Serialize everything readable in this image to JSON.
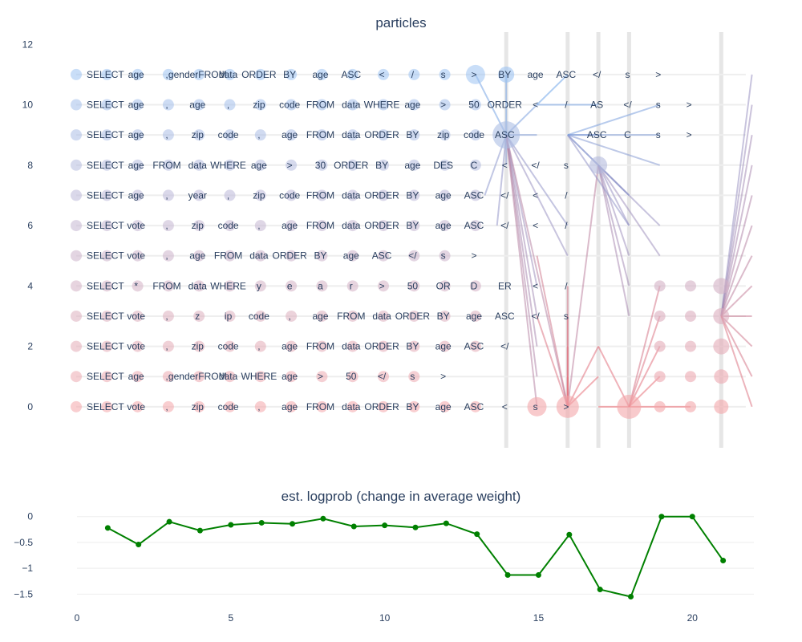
{
  "chart_data": [
    {
      "type": "scatter",
      "title": "particles",
      "xlabel": "",
      "ylabel": "",
      "xlim": [
        -0.5,
        22.5
      ],
      "ylim": [
        -1.2,
        12.3
      ],
      "y_ticks": [
        0,
        2,
        4,
        6,
        8,
        10,
        12
      ],
      "resample_steps": [
        14,
        16,
        17,
        18,
        21
      ],
      "colors": {
        "low": "#f4a6aa",
        "high": "#9cc3f2",
        "line_low": "#ee6e74",
        "line_high": "#6aa9ef"
      },
      "rows": [
        {
          "y": 0,
          "tokens": [
            "SELECT",
            "vote",
            ",",
            "zip",
            "code",
            ",",
            "age",
            "FROM",
            "data",
            "ORDER",
            "BY",
            "age",
            "ASC",
            "<",
            "s",
            ">",
            "",
            "",
            "",
            "",
            ""
          ]
        },
        {
          "y": 1,
          "tokens": [
            "SELECT",
            "age",
            ",",
            "genderFROM",
            "data",
            "WHERE",
            "age",
            ">",
            "50",
            "</",
            "s",
            ">",
            "",
            "",
            "",
            "",
            "",
            "",
            "",
            "",
            ""
          ]
        },
        {
          "y": 2,
          "tokens": [
            "SELECT",
            "vote",
            ",",
            "zip",
            "code",
            ",",
            "age",
            "FROM",
            "data",
            "ORDER",
            "BY",
            "age",
            "ASC",
            "</",
            "",
            "",
            "",
            "",
            "",
            "",
            ""
          ]
        },
        {
          "y": 3,
          "tokens": [
            "SELECT",
            "vote",
            ",",
            "z",
            "ip",
            "code",
            ",",
            "age",
            "FROM",
            "data",
            "ORDER",
            "BY",
            "age",
            "ASC",
            "</",
            "s",
            "",
            "",
            "",
            "",
            ""
          ]
        },
        {
          "y": 4,
          "tokens": [
            "SELECT",
            "*",
            "FROM",
            "data",
            "WHERE",
            "y",
            "e",
            "a",
            "r",
            ">",
            "50",
            "OR",
            "D",
            "ER",
            "<",
            "/",
            "",
            "",
            "",
            "",
            ""
          ]
        },
        {
          "y": 5,
          "tokens": [
            "SELECT",
            "vote",
            ",",
            "age",
            "FROM",
            "data",
            "ORDER",
            "BY",
            "age",
            "ASC",
            "</",
            "s",
            ">",
            "",
            "",
            "",
            "",
            "",
            "",
            "",
            ""
          ]
        },
        {
          "y": 6,
          "tokens": [
            "SELECT",
            "vote",
            ",",
            "zip",
            "code",
            ",",
            "age",
            "FROM",
            "data",
            "ORDER",
            "BY",
            "age",
            "ASC",
            "</",
            "<",
            "/",
            "",
            "",
            "",
            "",
            ""
          ]
        },
        {
          "y": 7,
          "tokens": [
            "SELECT",
            "age",
            ",",
            "year",
            ",",
            "zip",
            "code",
            "FROM",
            "data",
            "ORDER",
            "BY",
            "age",
            "ASC",
            "</",
            "<",
            "/",
            "",
            "",
            "",
            "",
            ""
          ]
        },
        {
          "y": 8,
          "tokens": [
            "SELECT",
            "age",
            "FROM",
            "data",
            "WHERE",
            "age",
            ">",
            "30",
            "ORDER",
            "BY",
            "age",
            "DES",
            "C",
            "<",
            "</",
            "s",
            "",
            "",
            "",
            "",
            ""
          ]
        },
        {
          "y": 9,
          "tokens": [
            "SELECT",
            "age",
            ",",
            "zip",
            "code",
            ",",
            "age",
            "FROM",
            "data",
            "ORDER",
            "BY",
            "zip",
            "code",
            "ASC",
            "",
            "",
            "ASC",
            "C",
            "s",
            ">",
            ""
          ]
        },
        {
          "y": 10,
          "tokens": [
            "SELECT",
            "age",
            ",",
            "age",
            ",",
            "zip",
            "code",
            "FROM",
            "data",
            "WHERE",
            "age",
            ">",
            "50",
            "ORDER",
            "<",
            "/",
            "AS",
            "</",
            "s",
            ">",
            ""
          ]
        },
        {
          "y": 11,
          "tokens": [
            "SELECT",
            "age",
            ",",
            "genderFROM",
            "data",
            "ORDER",
            "BY",
            "age",
            "ASC",
            "<",
            "/",
            "s",
            ">",
            "BY",
            "age",
            "ASC",
            "</",
            "s",
            ">",
            "",
            ""
          ]
        }
      ]
    },
    {
      "type": "line",
      "title": "est. logprob (change in average weight)",
      "xlabel": "",
      "ylabel": "",
      "xlim": [
        0,
        22
      ],
      "ylim": [
        -1.65,
        0.12
      ],
      "x_ticks": [
        0,
        5,
        10,
        15,
        20
      ],
      "y_ticks": [
        0,
        -0.5,
        -1,
        -1.5
      ],
      "y_tick_labels": [
        "0",
        "−0.5",
        "−1",
        "−1.5"
      ],
      "series": [
        {
          "color": "#008000",
          "x": [
            1,
            2,
            3,
            4,
            5,
            6,
            7,
            8,
            9,
            10,
            11,
            12,
            13,
            14,
            15,
            16,
            17,
            18,
            19,
            20,
            21
          ],
          "values": [
            -0.22,
            -0.54,
            -0.1,
            -0.27,
            -0.16,
            -0.12,
            -0.14,
            -0.04,
            -0.19,
            -0.17,
            -0.21,
            -0.13,
            -0.34,
            -1.13,
            -1.13,
            -0.35,
            -1.41,
            -1.55,
            0.0,
            0.0,
            -0.85
          ]
        }
      ]
    }
  ]
}
